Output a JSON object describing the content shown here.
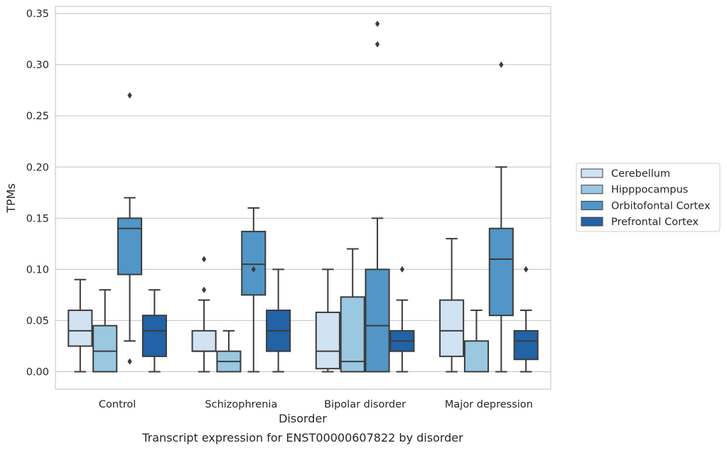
{
  "chart_data": {
    "type": "box",
    "title": "Transcript expression for ENST00000607822 by disorder",
    "xlabel": "Disorder",
    "ylabel": "TPMs",
    "ylim": [
      -0.017,
      0.357
    ],
    "yticks": [
      0.0,
      0.05,
      0.1,
      0.15,
      0.2,
      0.25,
      0.3,
      0.35
    ],
    "ytick_labels": [
      "0.00",
      "0.05",
      "0.10",
      "0.15",
      "0.20",
      "0.25",
      "0.30",
      "0.35"
    ],
    "grid": true,
    "legend_position": "right",
    "categories": [
      "Control",
      "Schizophrenia",
      "Bipolar disorder",
      "Major depression"
    ],
    "series": [
      {
        "name": "Cerebellum",
        "color": "#d1e2f2",
        "boxes": [
          {
            "whislo": 0.0,
            "q1": 0.025,
            "med": 0.04,
            "q3": 0.06,
            "whishi": 0.09,
            "fliers": []
          },
          {
            "whislo": 0.0,
            "q1": 0.02,
            "med": 0.02,
            "q3": 0.04,
            "whishi": 0.07,
            "fliers": [
              0.08,
              0.11
            ]
          },
          {
            "whislo": 0.0,
            "q1": 0.003,
            "med": 0.02,
            "q3": 0.058,
            "whishi": 0.1,
            "fliers": []
          },
          {
            "whislo": 0.0,
            "q1": 0.015,
            "med": 0.04,
            "q3": 0.07,
            "whishi": 0.13,
            "fliers": []
          }
        ]
      },
      {
        "name": "Hipppocampus",
        "color": "#9ac8e0",
        "boxes": [
          {
            "whislo": 0.0,
            "q1": 0.0,
            "med": 0.02,
            "q3": 0.045,
            "whishi": 0.08,
            "fliers": []
          },
          {
            "whislo": 0.0,
            "q1": 0.0,
            "med": 0.01,
            "q3": 0.02,
            "whishi": 0.04,
            "fliers": []
          },
          {
            "whislo": 0.0,
            "q1": 0.0,
            "med": 0.01,
            "q3": 0.073,
            "whishi": 0.12,
            "fliers": []
          },
          {
            "whislo": 0.0,
            "q1": 0.0,
            "med": 0.0,
            "q3": 0.03,
            "whishi": 0.06,
            "fliers": []
          }
        ]
      },
      {
        "name": "Orbitofontal Cortex",
        "color": "#5196c6",
        "boxes": [
          {
            "whislo": 0.03,
            "q1": 0.095,
            "med": 0.14,
            "q3": 0.15,
            "whishi": 0.17,
            "fliers": [
              0.01,
              0.27
            ]
          },
          {
            "whislo": 0.0,
            "q1": 0.075,
            "med": 0.105,
            "q3": 0.137,
            "whishi": 0.16,
            "fliers": [
              0.1
            ]
          },
          {
            "whislo": 0.0,
            "q1": 0.0,
            "med": 0.045,
            "q3": 0.1,
            "whishi": 0.15,
            "fliers": [
              0.32,
              0.34
            ]
          },
          {
            "whislo": 0.0,
            "q1": 0.055,
            "med": 0.11,
            "q3": 0.14,
            "whishi": 0.2,
            "fliers": [
              0.3
            ]
          }
        ]
      },
      {
        "name": "Prefrontal Cortex",
        "color": "#2163a6",
        "boxes": [
          {
            "whislo": 0.0,
            "q1": 0.015,
            "med": 0.04,
            "q3": 0.055,
            "whishi": 0.08,
            "fliers": []
          },
          {
            "whislo": 0.0,
            "q1": 0.02,
            "med": 0.04,
            "q3": 0.06,
            "whishi": 0.1,
            "fliers": []
          },
          {
            "whislo": 0.0,
            "q1": 0.02,
            "med": 0.03,
            "q3": 0.04,
            "whishi": 0.07,
            "fliers": [
              0.1
            ]
          },
          {
            "whislo": 0.0,
            "q1": 0.012,
            "med": 0.03,
            "q3": 0.04,
            "whishi": 0.06,
            "fliers": [
              0.1
            ]
          }
        ]
      }
    ]
  }
}
